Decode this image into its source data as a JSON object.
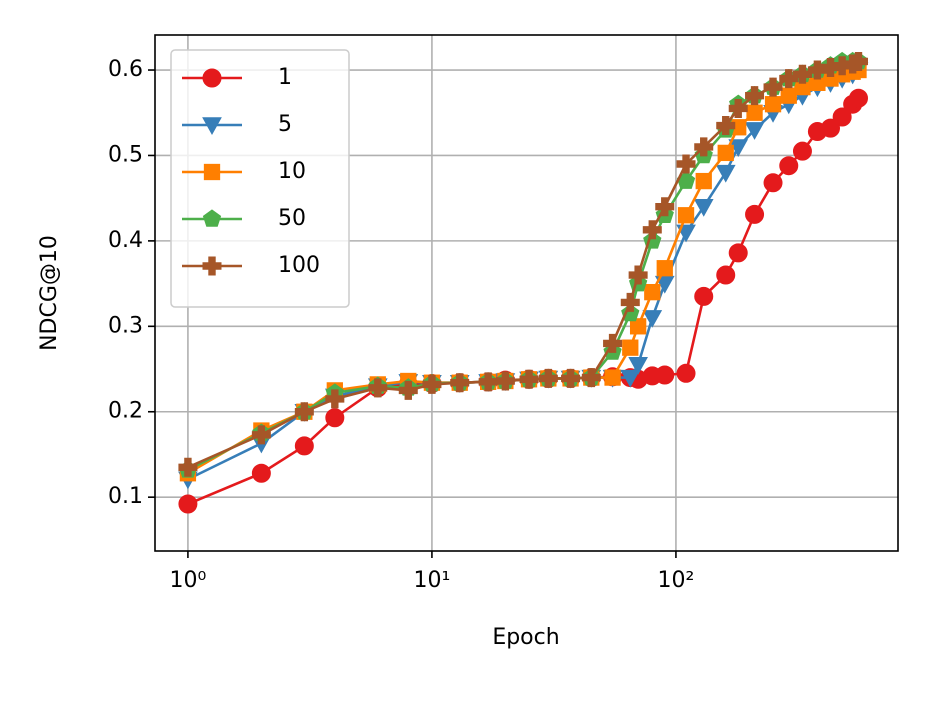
{
  "chart_data": {
    "type": "line",
    "x_label": "Epoch",
    "y_label": "NDCG@10",
    "xscale": "log",
    "grid": true,
    "legend": "upper left",
    "xlim": [
      0.733,
      813
    ],
    "xticks": [
      {
        "value": 1,
        "label": "10⁰"
      },
      {
        "value": 10,
        "label": "10¹"
      },
      {
        "value": 100,
        "label": "10²"
      }
    ],
    "ylim": [
      0.037,
      0.641
    ],
    "yticks": [
      0.1,
      0.2,
      0.3,
      0.4,
      0.5,
      0.6
    ],
    "x": [
      1,
      2,
      3,
      4,
      6,
      8,
      10,
      13,
      17,
      20,
      25,
      30,
      37,
      45,
      55,
      65,
      70,
      80,
      90,
      110,
      130,
      160,
      180,
      210,
      250,
      290,
      330,
      380,
      430,
      480,
      530,
      560
    ],
    "series": [
      {
        "name": "1",
        "color": "#e41a1c",
        "marker": "circle",
        "values": [
          0.092,
          0.128,
          0.16,
          0.193,
          0.228,
          0.232,
          0.233,
          0.234,
          0.235,
          0.237,
          0.238,
          0.239,
          0.239,
          0.24,
          0.241,
          0.24,
          0.238,
          0.242,
          0.243,
          0.245,
          0.335,
          0.36,
          0.386,
          0.431,
          0.468,
          0.488,
          0.505,
          0.528,
          0.532,
          0.545,
          0.56,
          0.567
        ]
      },
      {
        "name": "5",
        "color": "#377eb8",
        "marker": "triangle-down",
        "values": [
          0.121,
          0.163,
          0.2,
          0.218,
          0.23,
          0.235,
          0.234,
          0.234,
          0.235,
          0.236,
          0.238,
          0.239,
          0.239,
          0.24,
          0.24,
          0.24,
          0.255,
          0.31,
          0.35,
          0.41,
          0.44,
          0.48,
          0.51,
          0.53,
          0.55,
          0.56,
          0.57,
          0.58,
          0.585,
          0.59,
          0.595,
          0.6
        ]
      },
      {
        "name": "10",
        "color": "#ff7f00",
        "marker": "square",
        "values": [
          0.128,
          0.178,
          0.2,
          0.225,
          0.232,
          0.236,
          0.234,
          0.234,
          0.235,
          0.236,
          0.238,
          0.239,
          0.239,
          0.24,
          0.24,
          0.275,
          0.3,
          0.34,
          0.368,
          0.43,
          0.47,
          0.503,
          0.533,
          0.55,
          0.56,
          0.57,
          0.58,
          0.585,
          0.59,
          0.595,
          0.598,
          0.6
        ]
      },
      {
        "name": "50",
        "color": "#4daf4a",
        "marker": "pentagon",
        "values": [
          0.132,
          0.175,
          0.2,
          0.222,
          0.23,
          0.228,
          0.233,
          0.234,
          0.235,
          0.236,
          0.238,
          0.239,
          0.239,
          0.24,
          0.27,
          0.315,
          0.35,
          0.4,
          0.43,
          0.47,
          0.5,
          0.53,
          0.56,
          0.57,
          0.58,
          0.59,
          0.595,
          0.6,
          0.605,
          0.61,
          0.61,
          0.61
        ]
      },
      {
        "name": "100",
        "color": "#a65628",
        "marker": "plus",
        "values": [
          0.135,
          0.173,
          0.2,
          0.215,
          0.228,
          0.225,
          0.232,
          0.234,
          0.235,
          0.236,
          0.238,
          0.239,
          0.239,
          0.24,
          0.28,
          0.328,
          0.36,
          0.413,
          0.44,
          0.49,
          0.51,
          0.535,
          0.555,
          0.57,
          0.58,
          0.59,
          0.595,
          0.6,
          0.603,
          0.605,
          0.607,
          0.61
        ]
      }
    ]
  }
}
